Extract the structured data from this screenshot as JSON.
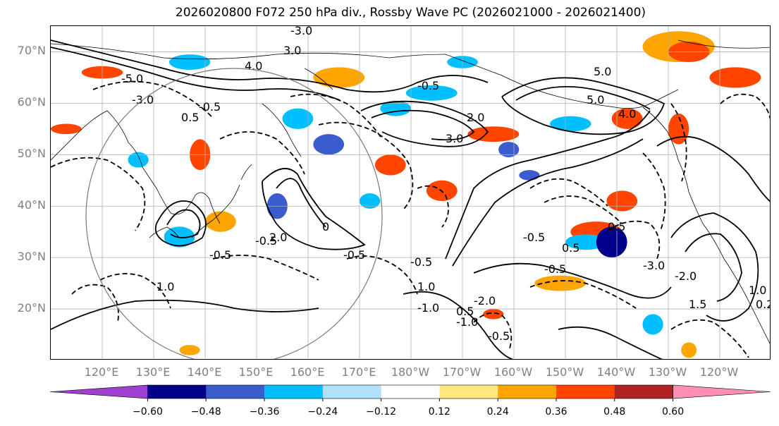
{
  "title": "2026020800 F072 250 hPa div., Rossby Wave PC (2026021000 - 2026021400)",
  "map": {
    "lat_labels": [
      {
        "text": "70°N",
        "lat": 70
      },
      {
        "text": "60°N",
        "lat": 60
      },
      {
        "text": "50°N",
        "lat": 50
      },
      {
        "text": "40°N",
        "lat": 40
      },
      {
        "text": "30°N",
        "lat": 30
      },
      {
        "text": "20°N",
        "lat": 20
      }
    ],
    "lon_labels": [
      {
        "text": "120°E",
        "lon": 120
      },
      {
        "text": "130°E",
        "lon": 130
      },
      {
        "text": "140°E",
        "lon": 140
      },
      {
        "text": "150°E",
        "lon": 150
      },
      {
        "text": "160°E",
        "lon": 160
      },
      {
        "text": "170°E",
        "lon": 170
      },
      {
        "text": "180°W",
        "lon": 180
      },
      {
        "text": "170°W",
        "lon": 190
      },
      {
        "text": "160°W",
        "lon": 200
      },
      {
        "text": "150°W",
        "lon": 210
      },
      {
        "text": "140°W",
        "lon": 220
      },
      {
        "text": "130°W",
        "lon": 230
      },
      {
        "text": "120°W",
        "lon": 240
      }
    ],
    "extent": {
      "lon_min": 110,
      "lon_max": 250,
      "lat_min": 10,
      "lat_max": 75
    },
    "contour_labels": [
      "-5.0",
      "-3.0",
      "-0.5",
      "0.5",
      "-0.5",
      "3.0",
      "4.0",
      "-3.0",
      "5.0",
      "-0.5",
      "2.0",
      "3.0",
      "5.0",
      "4.0",
      "1.0",
      "0",
      "-0.5",
      "-0.5",
      "1.0",
      "-1.0",
      "0.5",
      "-0.5",
      "-0.5",
      "0.5",
      "-2.0",
      "-1.0",
      "-0.5",
      "1.0",
      "1.5",
      "-2.0",
      "-0.5",
      "0.5",
      "2.0",
      "-3.0",
      "0.2"
    ]
  },
  "colorbar": {
    "colors": [
      "#a040d0",
      "#00008b",
      "#3a5ccc",
      "#00bfff",
      "#b0e2ff",
      "#ffffff",
      "#ffe97f",
      "#ffa500",
      "#ff4500",
      "#b22222",
      "#ff8fb4"
    ],
    "ticks": [
      "−0.60",
      "−0.48",
      "−0.36",
      "−0.24",
      "−0.12",
      "0.12",
      "0.24",
      "0.36",
      "0.48",
      "0.60"
    ]
  },
  "colors": {
    "axis_label": "#808080",
    "grid": "#b0b0b0",
    "coast": "#000000"
  }
}
